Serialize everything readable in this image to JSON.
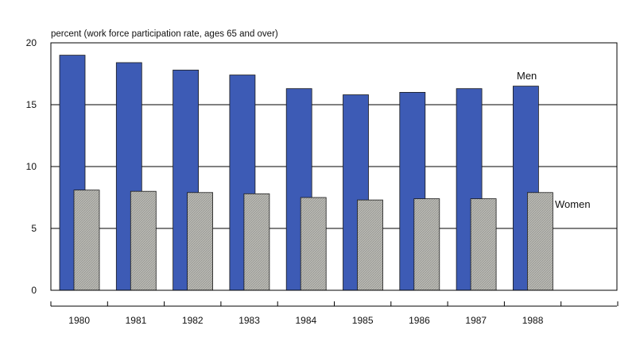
{
  "chart_data": {
    "type": "bar",
    "categories": [
      "1980",
      "1981",
      "1982",
      "1983",
      "1984",
      "1985",
      "1986",
      "1987",
      "1988"
    ],
    "series": [
      {
        "name": "Men",
        "values": [
          19.0,
          18.4,
          17.8,
          17.4,
          16.3,
          15.8,
          16.0,
          16.3,
          16.5
        ],
        "color": "#3d5bb5"
      },
      {
        "name": "Women",
        "values": [
          8.1,
          8.0,
          7.9,
          7.8,
          7.5,
          7.3,
          7.4,
          7.4,
          7.9
        ],
        "color": "#b8b8b3"
      }
    ],
    "title": "",
    "xlabel": "",
    "ylabel": "percent (work force participation rate, ages 65 and over)",
    "ylim": [
      0,
      20
    ],
    "yticks": [
      "0",
      "5",
      "10",
      "15",
      "20"
    ],
    "grid": true,
    "legend": "direct labels next to the last bars"
  }
}
